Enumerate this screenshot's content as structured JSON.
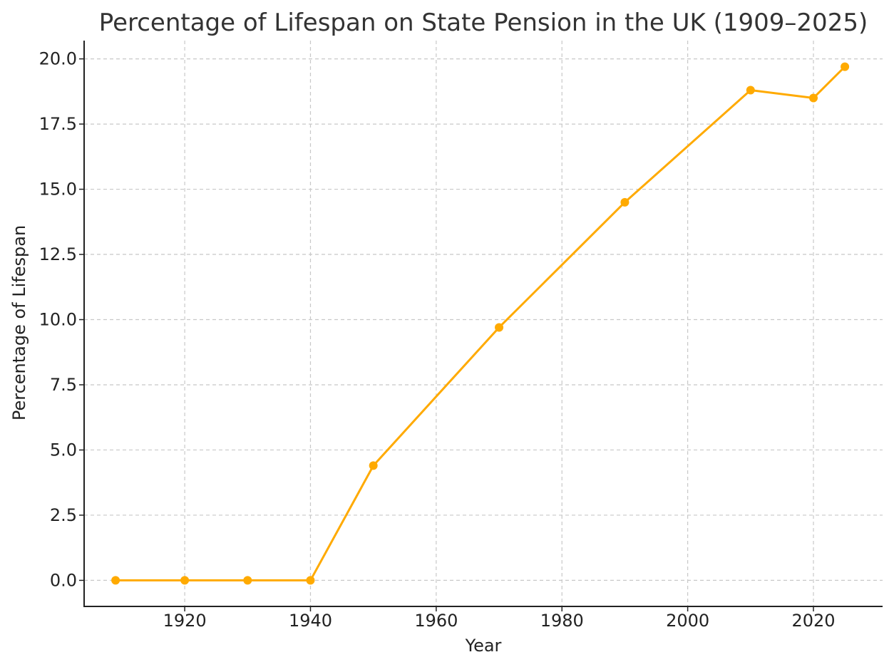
{
  "chart_data": {
    "type": "line",
    "title": "Percentage of Lifespan on State Pension in the UK (1909–2025)",
    "xlabel": "Year",
    "ylabel": "Percentage of Lifespan",
    "x": [
      1909,
      1920,
      1930,
      1940,
      1950,
      1970,
      1990,
      2010,
      2020,
      2025
    ],
    "series": [
      {
        "name": "",
        "values": [
          0.0,
          0.0,
          0.0,
          0.0,
          4.4,
          9.7,
          14.5,
          18.8,
          18.5,
          19.7
        ],
        "color": "#FFAA00"
      }
    ],
    "xlim": [
      1904,
      2031
    ],
    "ylim": [
      -1.0,
      20.7
    ],
    "xticks": [
      1920,
      1940,
      1960,
      1980,
      2000,
      2020
    ],
    "yticks": [
      0.0,
      2.5,
      5.0,
      7.5,
      10.0,
      12.5,
      15.0,
      17.5,
      20.0
    ],
    "ytick_labels": [
      "0.0",
      "2.5",
      "5.0",
      "7.5",
      "10.0",
      "12.5",
      "15.0",
      "17.5",
      "20.0"
    ],
    "grid": true,
    "marker": "circle"
  }
}
